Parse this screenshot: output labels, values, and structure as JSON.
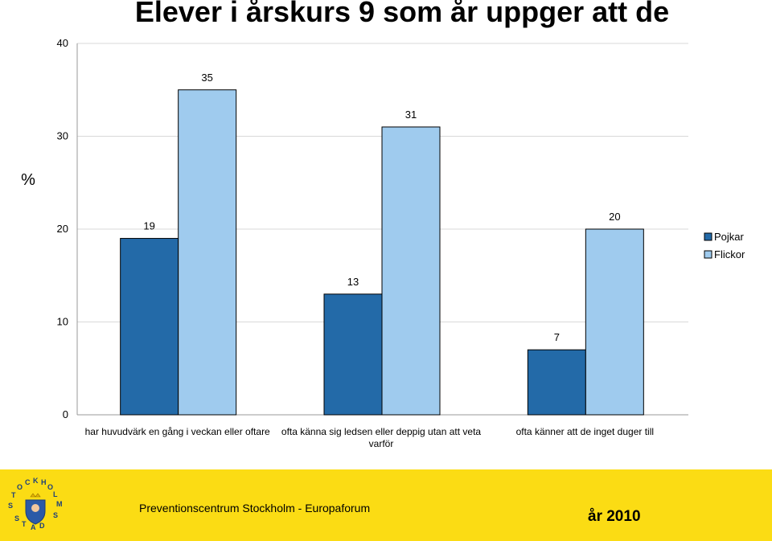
{
  "title": "Elever i årskurs 9 som år uppger att de",
  "chart_data": {
    "type": "bar",
    "ylabel": "%",
    "ylim": [
      0,
      40
    ],
    "yticks": [
      0,
      10,
      20,
      30,
      40
    ],
    "grid": true,
    "legend_position": "right",
    "categories": [
      [
        "har huvudvärk en gång i veckan eller oftare"
      ],
      [
        "ofta känna sig ledsen eller deppig utan att veta",
        "varför"
      ],
      [
        "ofta känner att de inget duger till"
      ]
    ],
    "series": [
      {
        "name": "Pojkar",
        "values": [
          19,
          13,
          7
        ],
        "color": "#236aa8"
      },
      {
        "name": "Flickor",
        "values": [
          35,
          31,
          20
        ],
        "color": "#9fcbee"
      }
    ]
  },
  "footer": {
    "organization": "Preventionscentrum Stockholm - Europaforum",
    "year": "år 2010",
    "logo_text": "STOCKHOLMS STAD",
    "background": "#fbdc14"
  }
}
